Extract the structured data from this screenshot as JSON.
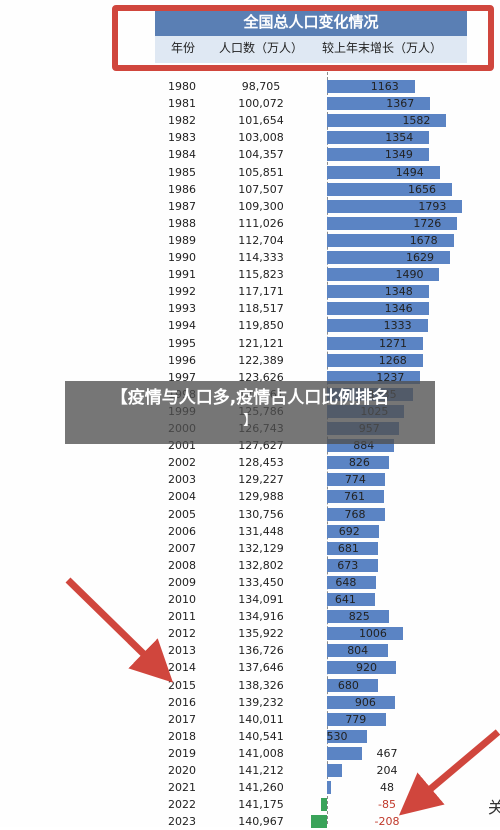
{
  "chart_data": {
    "type": "bar",
    "title": "全国总人口变化情况",
    "columns": [
      "年份",
      "人口数（万人）",
      "较上年末增长（万人）"
    ],
    "rows": [
      {
        "year": "1980",
        "population": "98,705",
        "increase": 1163
      },
      {
        "year": "1981",
        "population": "100,072",
        "increase": 1367
      },
      {
        "year": "1982",
        "population": "101,654",
        "increase": 1582
      },
      {
        "year": "1983",
        "population": "103,008",
        "increase": 1354
      },
      {
        "year": "1984",
        "population": "104,357",
        "increase": 1349
      },
      {
        "year": "1985",
        "population": "105,851",
        "increase": 1494
      },
      {
        "year": "1986",
        "population": "107,507",
        "increase": 1656
      },
      {
        "year": "1987",
        "population": "109,300",
        "increase": 1793
      },
      {
        "year": "1988",
        "population": "111,026",
        "increase": 1726
      },
      {
        "year": "1989",
        "population": "112,704",
        "increase": 1678
      },
      {
        "year": "1990",
        "population": "114,333",
        "increase": 1629
      },
      {
        "year": "1991",
        "population": "115,823",
        "increase": 1490
      },
      {
        "year": "1992",
        "population": "117,171",
        "increase": 1348
      },
      {
        "year": "1993",
        "population": "118,517",
        "increase": 1346
      },
      {
        "year": "1994",
        "population": "119,850",
        "increase": 1333
      },
      {
        "year": "1995",
        "population": "121,121",
        "increase": 1271
      },
      {
        "year": "1996",
        "population": "122,389",
        "increase": 1268
      },
      {
        "year": "1997",
        "population": "123,626",
        "increase": 1237
      },
      {
        "year": "1998",
        "population": "124,761",
        "increase": 1135
      },
      {
        "year": "1999",
        "population": "125,786",
        "increase": 1025
      },
      {
        "year": "2000",
        "population": "126,743",
        "increase": 957
      },
      {
        "year": "2001",
        "population": "127,627",
        "increase": 884
      },
      {
        "year": "2002",
        "population": "128,453",
        "increase": 826
      },
      {
        "year": "2003",
        "population": "129,227",
        "increase": 774
      },
      {
        "year": "2004",
        "population": "129,988",
        "increase": 761
      },
      {
        "year": "2005",
        "population": "130,756",
        "increase": 768
      },
      {
        "year": "2006",
        "population": "131,448",
        "increase": 692
      },
      {
        "year": "2007",
        "population": "132,129",
        "increase": 681
      },
      {
        "year": "2008",
        "population": "132,802",
        "increase": 673
      },
      {
        "year": "2009",
        "population": "133,450",
        "increase": 648
      },
      {
        "year": "2010",
        "population": "134,091",
        "increase": 641
      },
      {
        "year": "2011",
        "population": "134,916",
        "increase": 825
      },
      {
        "year": "2012",
        "population": "135,922",
        "increase": 1006
      },
      {
        "year": "2013",
        "population": "136,726",
        "increase": 804
      },
      {
        "year": "2014",
        "population": "137,646",
        "increase": 920
      },
      {
        "year": "2015",
        "population": "138,326",
        "increase": 680
      },
      {
        "year": "2016",
        "population": "139,232",
        "increase": 906
      },
      {
        "year": "2017",
        "population": "140,011",
        "increase": 779
      },
      {
        "year": "2018",
        "population": "140,541",
        "increase": 530
      },
      {
        "year": "2019",
        "population": "141,008",
        "increase": 467
      },
      {
        "year": "2020",
        "population": "141,212",
        "increase": 204
      },
      {
        "year": "2021",
        "population": "141,260",
        "increase": 48
      },
      {
        "year": "2022",
        "population": "141,175",
        "increase": -85
      },
      {
        "year": "2023",
        "population": "140,967",
        "increase": -208
      }
    ],
    "xlim": [
      -250,
      1800
    ],
    "colors": {
      "positive": "#5b84c4",
      "negative": "#3aa35a",
      "header": "#5a7fb4",
      "highlight": "#d0463d"
    }
  },
  "overlay": {
    "headline": "【疫情与人口多,疫情占人口比例排名",
    "subline": "】"
  },
  "edge_glyph": "关"
}
